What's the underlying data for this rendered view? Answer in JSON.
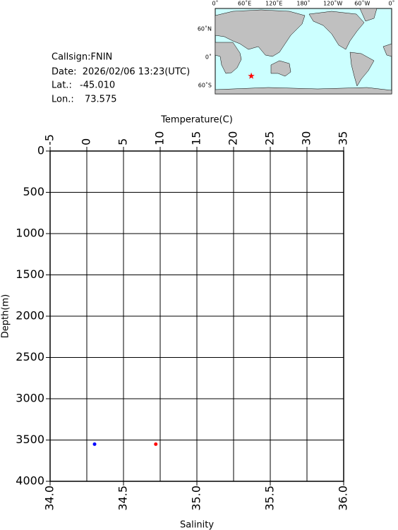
{
  "info": {
    "callsign": "Callsign:FNIN",
    "date": "Date:  2026/02/06 13:23(UTC)",
    "lat_label": "Lat.:",
    "lat": "-45.010",
    "lon_label": "Lon.:",
    "lon": "73.575"
  },
  "map": {
    "lon_labels": [
      "0˚",
      "60˚E",
      "120˚E",
      "180˚",
      "120˚W",
      "60˚W",
      "0˚"
    ],
    "lat_labels": [
      "60˚N",
      "0˚",
      "60˚S"
    ]
  },
  "chart_data": {
    "type": "scatter",
    "x2label": "Temperature(C)",
    "xlabel": "Salinity",
    "ylabel": "Depth(m)",
    "xlim": [
      34,
      36
    ],
    "xticks": [
      {
        "value": 34,
        "label": "34.0"
      },
      34.5,
      {
        "value": 35,
        "label": "35.0"
      },
      35.5,
      {
        "value": 36,
        "label": "36.0"
      }
    ],
    "x2lim": [
      -5,
      35
    ],
    "x2ticks": [
      -5,
      0,
      5,
      10,
      15,
      20,
      25,
      30,
      35
    ],
    "ylim": [
      0,
      4000
    ],
    "yticks": [
      0,
      500,
      1000,
      1500,
      2000,
      2500,
      3000,
      3500,
      4000
    ],
    "y_inverted": true,
    "grid": true,
    "series": [
      {
        "color": "#0000ff",
        "axis": "x2",
        "x": [
          1.06
        ],
        "y": [
          3550
        ]
      },
      {
        "color": "#ff0000",
        "x": [
          34.72
        ],
        "y": [
          3550
        ]
      }
    ]
  }
}
